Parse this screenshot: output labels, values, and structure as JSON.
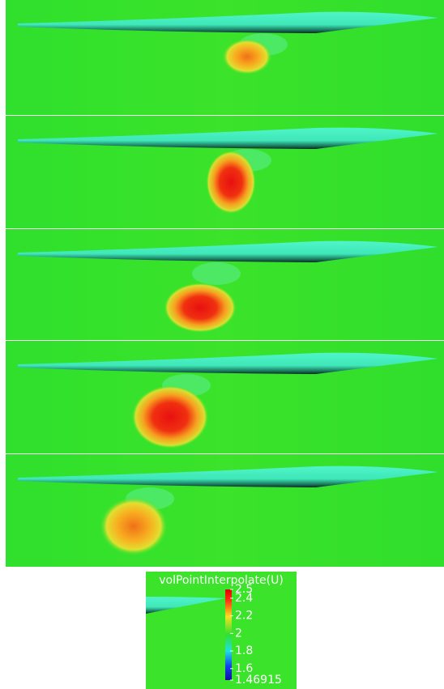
{
  "legend": {
    "title": "volPointInterpolate(U)",
    "ticks": [
      2.5,
      2.4,
      2.2,
      2,
      1.8,
      1.6,
      1.46915
    ]
  }
}
